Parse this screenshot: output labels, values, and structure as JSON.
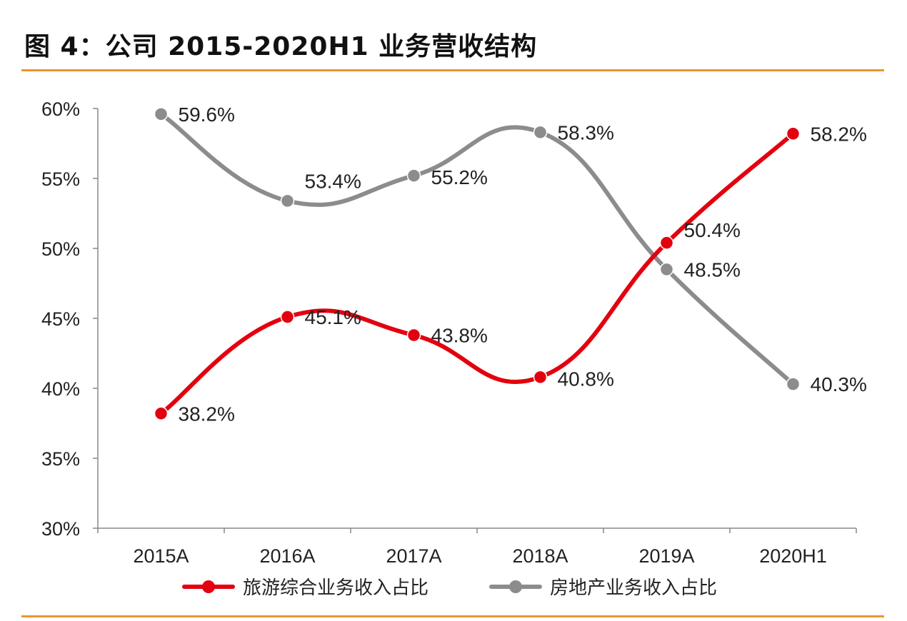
{
  "title": "图 4：公司 2015-2020H1 业务营收结构",
  "chart_data": {
    "type": "line",
    "categories": [
      "2015A",
      "2016A",
      "2017A",
      "2018A",
      "2019A",
      "2020H1"
    ],
    "ylim": [
      30,
      60
    ],
    "yticks": [
      "30%",
      "35%",
      "40%",
      "45%",
      "50%",
      "55%",
      "60%"
    ],
    "ytick_values": [
      30,
      35,
      40,
      45,
      50,
      55,
      60
    ],
    "grid": false,
    "smooth": true,
    "legend_position": "bottom",
    "series": [
      {
        "name": "旅游综合业务收入占比",
        "color": "#e3000f",
        "values": [
          38.2,
          45.1,
          43.8,
          40.8,
          50.4,
          58.2
        ],
        "labels": [
          "38.2%",
          "45.1%",
          "43.8%",
          "40.8%",
          "50.4%",
          "58.2%"
        ]
      },
      {
        "name": "房地产业务收入占比",
        "color": "#8c8c8c",
        "values": [
          59.6,
          53.4,
          55.2,
          58.3,
          48.5,
          40.3
        ],
        "labels": [
          "59.6%",
          "53.4%",
          "55.2%",
          "58.3%",
          "48.5%",
          "40.3%"
        ]
      }
    ]
  }
}
